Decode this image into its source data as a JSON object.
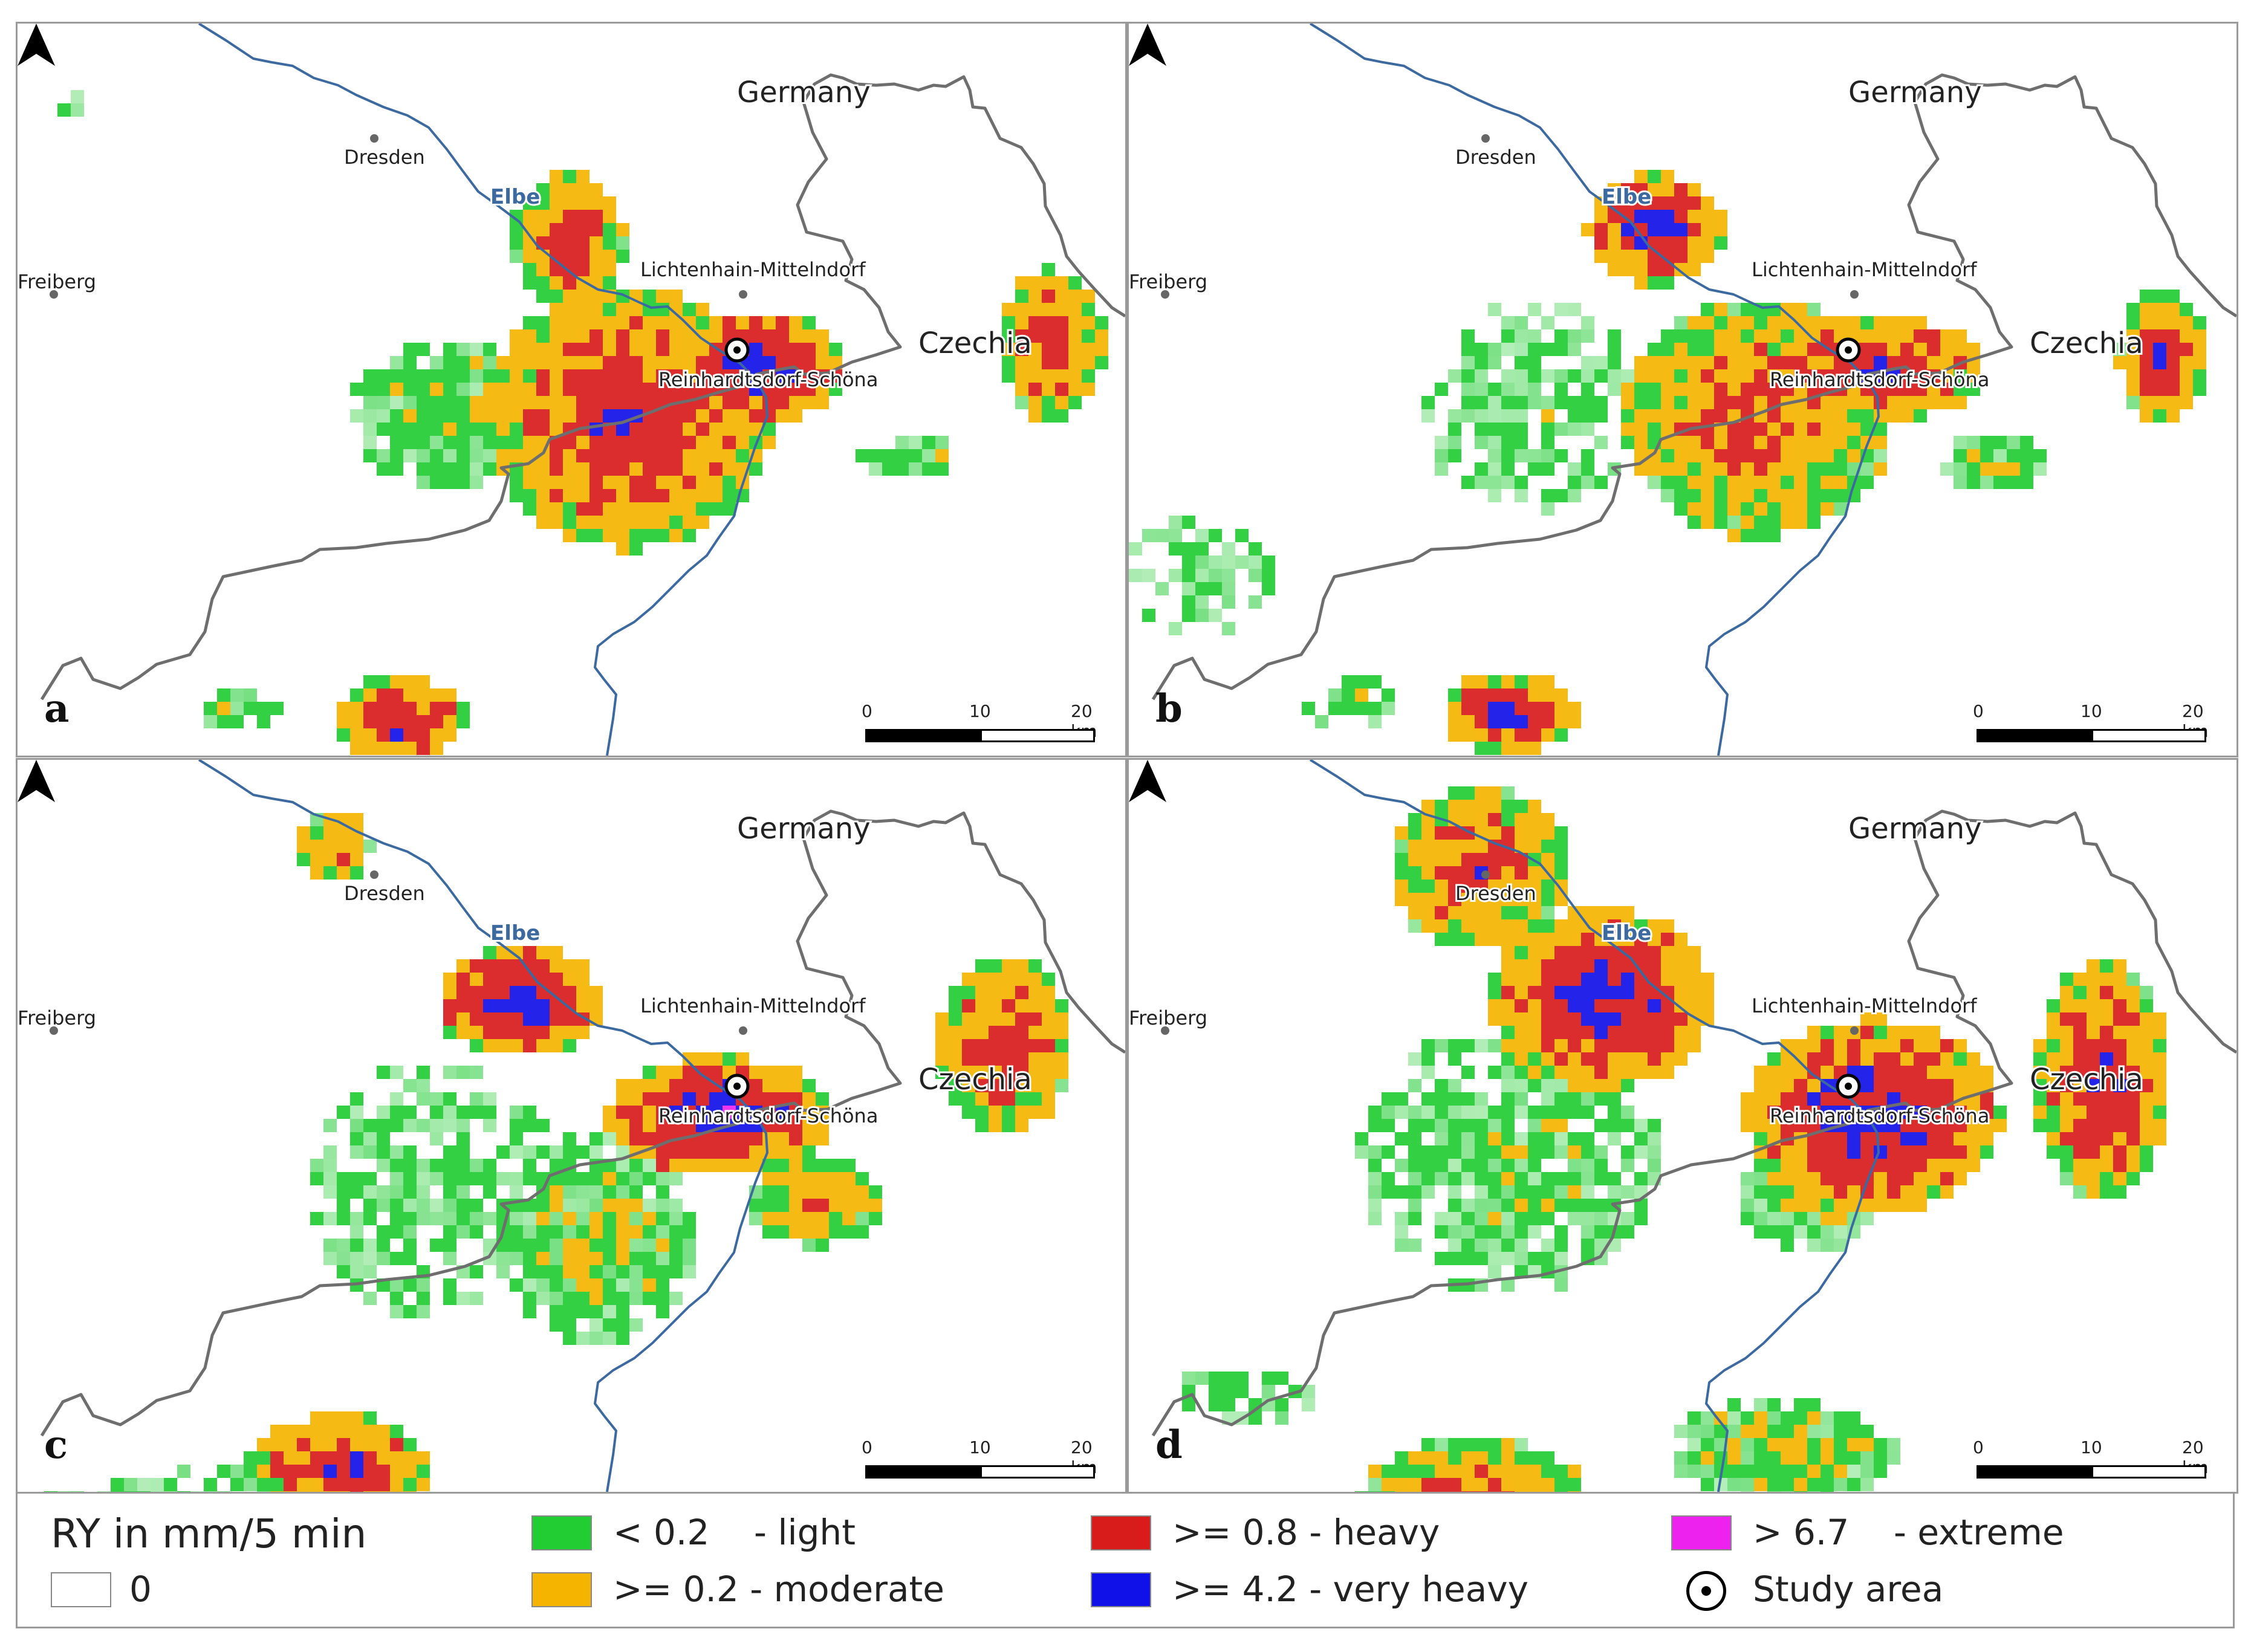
{
  "map": {
    "country_de": "Germany",
    "country_cz": "Czechia",
    "river_label": "Elbe",
    "places": {
      "dresden": "Dresden",
      "freiberg": "Freiberg",
      "lichtenhain": "Lichtenhain-Mittelndorf",
      "reinhardtsdorf": "Reinhardtsdorf-Schöna"
    },
    "scale": {
      "tick0": "0",
      "tick1": "10",
      "tick2": "20 km"
    }
  },
  "panels": [
    {
      "letter": "a"
    },
    {
      "letter": "b"
    },
    {
      "letter": "c"
    },
    {
      "letter": "d"
    }
  ],
  "legend": {
    "title": "RY in mm/5 min",
    "items": [
      {
        "label": "0",
        "color": "#ffffff"
      },
      {
        "label": "< 0.2    - light",
        "color": "#22cc33"
      },
      {
        "label": ">= 0.2 - moderate",
        "color": "#f4b400"
      },
      {
        "label": ">= 0.8 - heavy",
        "color": "#d81b1b"
      },
      {
        "label": ">= 4.2 - very heavy",
        "color": "#1010e8"
      },
      {
        "label": "> 6.7    - extreme",
        "color": "#ee22ee"
      }
    ],
    "study_area": "Study area"
  },
  "colors": {
    "light": "#22cc33",
    "moderate": "#f4b400",
    "heavy": "#d81b1b",
    "very_heavy": "#1010e8",
    "extreme": "#ee22ee",
    "border": "#6e6e6e",
    "river": "#3c6aa0"
  }
}
